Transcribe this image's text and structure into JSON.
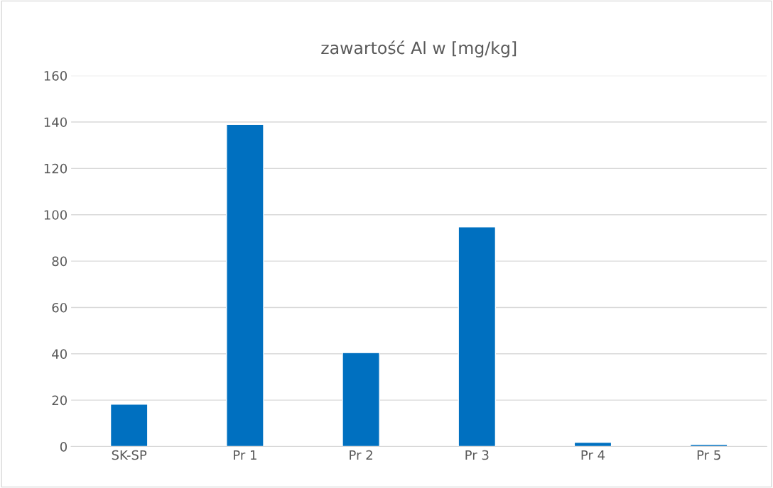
{
  "chart_data": {
    "type": "bar",
    "title": "zawartość Al w [mg/kg]",
    "categories": [
      "SK-SP",
      "Pr 1",
      "Pr 2",
      "Pr 3",
      "Pr 4",
      "Pr 5"
    ],
    "values": [
      18.3,
      139,
      40.5,
      94.8,
      1.8,
      0.9
    ],
    "color": "#0070c0",
    "ylim": [
      0,
      160
    ],
    "yticks": [
      0,
      20,
      40,
      60,
      80,
      100,
      120,
      140,
      160
    ],
    "grid": "y"
  }
}
